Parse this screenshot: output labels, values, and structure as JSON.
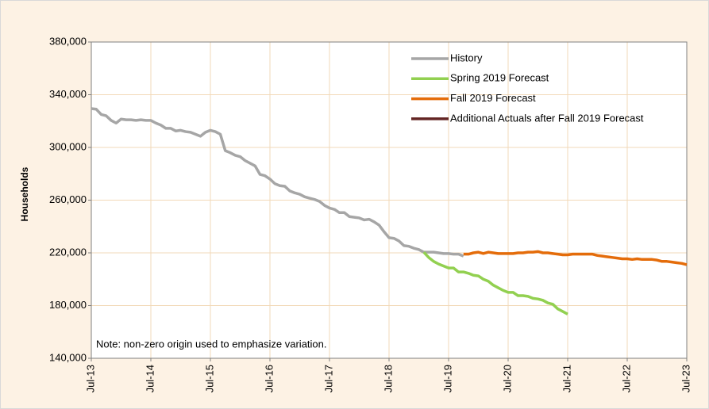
{
  "chart_data": {
    "type": "line",
    "y_label": "Households",
    "note": "Note: non-zero origin used to emphasize variation.",
    "xlim": [
      "Jul-13",
      "Jul-23"
    ],
    "xticks": [
      "Jul-13",
      "Jul-14",
      "Jul-15",
      "Jul-16",
      "Jul-17",
      "Jul-18",
      "Jul-19",
      "Jul-20",
      "Jul-21",
      "Jul-22",
      "Jul-23"
    ],
    "ylim": [
      140000,
      380000
    ],
    "yticks": [
      {
        "value": 140000,
        "label": "140,000"
      },
      {
        "value": 180000,
        "label": "180,000"
      },
      {
        "value": 220000,
        "label": "220,000"
      },
      {
        "value": 260000,
        "label": "260,000"
      },
      {
        "value": 300000,
        "label": "300,000"
      },
      {
        "value": 340000,
        "label": "340,000"
      },
      {
        "value": 380000,
        "label": "380,000"
      }
    ],
    "grid": true,
    "legend": "upper right",
    "series": [
      {
        "name": "History",
        "color": "#a6a6a6",
        "x": [
          "Jul-13",
          "Aug-13",
          "Sep-13",
          "Oct-13",
          "Nov-13",
          "Dec-13",
          "Jan-14",
          "Feb-14",
          "Mar-14",
          "Apr-14",
          "May-14",
          "Jun-14",
          "Jul-14",
          "Aug-14",
          "Sep-14",
          "Oct-14",
          "Nov-14",
          "Dec-14",
          "Jan-15",
          "Feb-15",
          "Mar-15",
          "Apr-15",
          "May-15",
          "Jun-15",
          "Jul-15",
          "Aug-15",
          "Sep-15",
          "Oct-15",
          "Nov-15",
          "Dec-15",
          "Jan-16",
          "Feb-16",
          "Mar-16",
          "Apr-16",
          "May-16",
          "Jun-16",
          "Jul-16",
          "Aug-16",
          "Sep-16",
          "Oct-16",
          "Nov-16",
          "Dec-16",
          "Jan-17",
          "Feb-17",
          "Mar-17",
          "Apr-17",
          "May-17",
          "Jun-17",
          "Jul-17",
          "Aug-17",
          "Sep-17",
          "Oct-17",
          "Nov-17",
          "Dec-17",
          "Jan-18",
          "Feb-18",
          "Mar-18",
          "Apr-18",
          "May-18",
          "Jun-18",
          "Jul-18",
          "Aug-18",
          "Sep-18",
          "Oct-18",
          "Nov-18",
          "Dec-18",
          "Jan-19",
          "Feb-19",
          "Mar-19",
          "Apr-19",
          "May-19",
          "Jun-19",
          "Jul-19",
          "Aug-19",
          "Sep-19",
          "Oct-19"
        ],
        "values": [
          329500,
          329000,
          325000,
          324000,
          320500,
          318500,
          321500,
          321000,
          321000,
          320500,
          321000,
          320500,
          320500,
          318500,
          317000,
          314500,
          314500,
          312500,
          313000,
          312000,
          311500,
          310000,
          308500,
          311500,
          313000,
          312000,
          310000,
          297500,
          296000,
          294000,
          293000,
          290000,
          288000,
          286000,
          279500,
          278500,
          276000,
          272500,
          271000,
          270500,
          267000,
          265500,
          264500,
          262500,
          261500,
          260500,
          259000,
          256000,
          254000,
          253000,
          250500,
          250500,
          247500,
          247000,
          246500,
          245000,
          245500,
          243500,
          241000,
          236000,
          231500,
          231000,
          229000,
          225500,
          225000,
          223500,
          222500,
          220500,
          220500,
          220500,
          220000,
          219500,
          219500,
          219000,
          219000,
          217500
        ]
      },
      {
        "name": "Spring 2019 Forecast",
        "color": "#92d050",
        "x": [
          "Feb-19",
          "Mar-19",
          "Apr-19",
          "May-19",
          "Jun-19",
          "Jul-19",
          "Aug-19",
          "Sep-19",
          "Oct-19",
          "Nov-19",
          "Dec-19",
          "Jan-20",
          "Feb-20",
          "Mar-20",
          "Apr-20",
          "May-20",
          "Jun-20",
          "Jul-20",
          "Aug-20",
          "Sep-20",
          "Oct-20",
          "Nov-20",
          "Dec-20",
          "Jan-21",
          "Feb-21",
          "Mar-21",
          "Apr-21",
          "May-21",
          "Jun-21",
          "Jul-21"
        ],
        "values": [
          220500,
          216500,
          213500,
          211500,
          210000,
          208500,
          208500,
          205500,
          205500,
          204500,
          203000,
          202500,
          200000,
          198500,
          195500,
          193500,
          191500,
          190000,
          190000,
          187500,
          187500,
          187000,
          185500,
          185000,
          184000,
          182000,
          181000,
          177500,
          175500,
          173500
        ]
      },
      {
        "name": "Fall 2019 Forecast",
        "color": "#e46c0a",
        "x": [
          "Oct-19",
          "Nov-19",
          "Dec-19",
          "Jan-20",
          "Feb-20",
          "Mar-20",
          "Apr-20",
          "May-20",
          "Jun-20",
          "Jul-20",
          "Aug-20",
          "Sep-20",
          "Oct-20",
          "Nov-20",
          "Dec-20",
          "Jan-21",
          "Feb-21",
          "Mar-21",
          "Apr-21",
          "May-21",
          "Jun-21",
          "Jul-21",
          "Aug-21",
          "Sep-21",
          "Oct-21",
          "Nov-21",
          "Dec-21",
          "Jan-22",
          "Feb-22",
          "Mar-22",
          "Apr-22",
          "May-22",
          "Jun-22",
          "Jul-22",
          "Aug-22",
          "Sep-22",
          "Oct-22",
          "Nov-22",
          "Dec-22",
          "Jan-23",
          "Feb-23",
          "Mar-23",
          "Apr-23",
          "May-23",
          "Jun-23",
          "Jul-23"
        ],
        "values": [
          219000,
          219000,
          220000,
          220500,
          219500,
          220500,
          220000,
          219500,
          219500,
          219500,
          219500,
          220000,
          220000,
          220500,
          220500,
          221000,
          220000,
          220000,
          219500,
          219000,
          218500,
          218500,
          219000,
          219000,
          219000,
          219000,
          219000,
          218000,
          217500,
          217000,
          216500,
          216000,
          215500,
          215500,
          215000,
          215500,
          215000,
          215000,
          215000,
          214500,
          213500,
          213500,
          213000,
          212500,
          212000,
          211000
        ]
      },
      {
        "name": "Additional Actuals after Fall 2019 Forecast",
        "color": "#632523",
        "x": [],
        "values": []
      }
    ]
  }
}
